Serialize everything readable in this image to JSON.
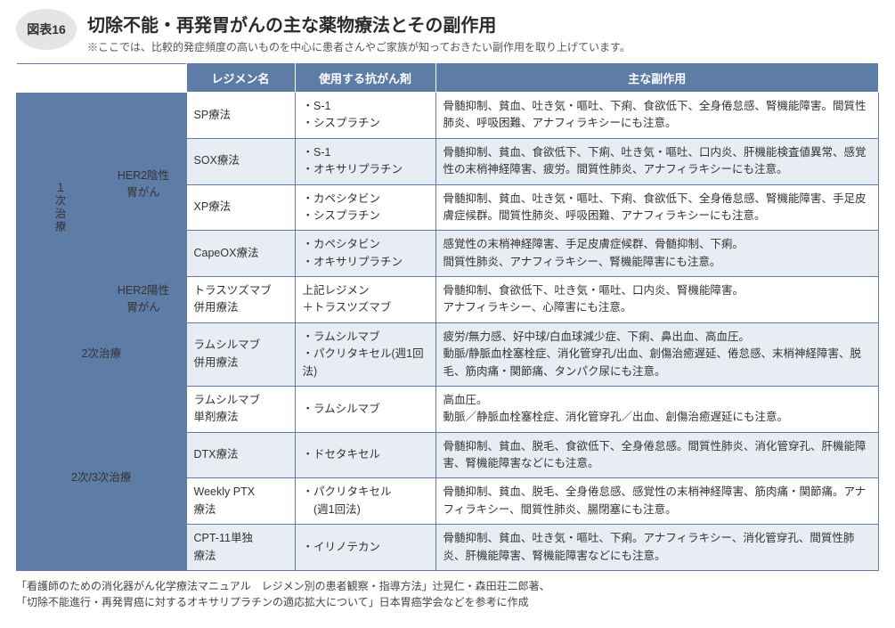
{
  "figure_tag": "図表16",
  "title": "切除不能・再発胃がんの主な薬物療法とその副作用",
  "subtitle": "※ここでは、比較的発症頻度の高いものを中心に患者さんやご家族が知っておきたい副作用を取り上げています。",
  "columns": {
    "regimen": "レジメン名",
    "agents": "使用する抗がん剤",
    "side_effects": "主な副作用"
  },
  "cat_first": "１次治療",
  "subcat_her2neg": "HER2陰性\n胃がん",
  "subcat_her2pos": "HER2陽性\n胃がん",
  "cat_second": "2次治療",
  "cat_third": "2次/3次治療",
  "rows": [
    {
      "regimen": "SP療法",
      "agents": "・S-1\n・シスプラチン",
      "se": "骨髄抑制、貧血、吐き気・嘔吐、下痢、食欲低下、全身倦怠感、腎機能障害。間質性肺炎、呼吸困難、アナフィラキシーにも注意。"
    },
    {
      "regimen": "SOX療法",
      "agents": "・S-1\n・オキサリプラチン",
      "se": "骨髄抑制、貧血、食欲低下、下痢、吐き気・嘔吐、口内炎、肝機能検査値異常、感覚性の末梢神経障害、疲労。間質性肺炎、アナフィラキシーにも注意。"
    },
    {
      "regimen": "XP療法",
      "agents": "・カペシタビン\n・シスプラチン",
      "se": "骨髄抑制、貧血、吐き気・嘔吐、下痢、食欲低下、全身倦怠感、腎機能障害、手足皮膚症候群。間質性肺炎、呼吸困難、アナフィラキシーにも注意。"
    },
    {
      "regimen": "CapeOX療法",
      "agents": "・カペシタビン\n・オキサリプラチン",
      "se": "感覚性の末梢神経障害、手足皮膚症候群、骨髄抑制、下痢。\n間質性肺炎、アナフィラキシー、腎機能障害にも注意。"
    },
    {
      "regimen": "トラスツズマブ\n併用療法",
      "agents": "上記レジメン\n＋トラスツズマブ",
      "se": "骨髄抑制、食欲低下、吐き気・嘔吐、口内炎、腎機能障害。\nアナフィラキシー、心障害にも注意。"
    },
    {
      "regimen": "ラムシルマブ\n併用療法",
      "agents": "・ラムシルマブ\n・パクリタキセル(週1回法)",
      "se": "疲労/無力感、好中球/白血球減少症、下痢、鼻出血、高血圧。\n動脈/静脈血栓塞栓症、消化管穿孔/出血、創傷治癒遅延、倦怠感、末梢神経障害、脱毛、筋肉痛・関節痛、タンパク尿にも注意。"
    },
    {
      "regimen": "ラムシルマブ\n単剤療法",
      "agents": "・ラムシルマブ",
      "se": "高血圧。\n動脈／静脈血栓塞栓症、消化管穿孔／出血、創傷治癒遅延にも注意。"
    },
    {
      "regimen": "DTX療法",
      "agents": "・ドセタキセル",
      "se": "骨髄抑制、貧血、脱毛、食欲低下、全身倦怠感。間質性肺炎、消化管穿孔、肝機能障害、腎機能障害などにも注意。"
    },
    {
      "regimen": "Weekly PTX\n療法",
      "agents": "・パクリタキセル\n　(週1回法)",
      "se": "骨髄抑制、貧血、脱毛、全身倦怠感、感覚性の末梢神経障害、筋肉痛・関節痛。アナフィラキシー、間質性肺炎、腸閉塞にも注意。"
    },
    {
      "regimen": "CPT-11単独\n療法",
      "agents": "・イリノテカン",
      "se": "骨髄抑制、貧血、吐き気・嘔吐、下痢。アナフィラキシー、消化管穿孔、間質性肺炎、肝機能障害、腎機能障害などにも注意。"
    }
  ],
  "footnote1": "「看護師のための消化器がん化学療法マニュアル　レジメン別の患者観察・指導方法」辻晃仁・森田荘二郎著、",
  "footnote2": "「切除不能進行・再発胃癌に対するオキサリプラチンの適応拡大について」日本胃癌学会などを参考に作成",
  "colors": {
    "header_bg": "#5d7ca6",
    "alt_row_bg": "#e8edf3",
    "border": "#5d7ca6",
    "text": "#333333"
  }
}
